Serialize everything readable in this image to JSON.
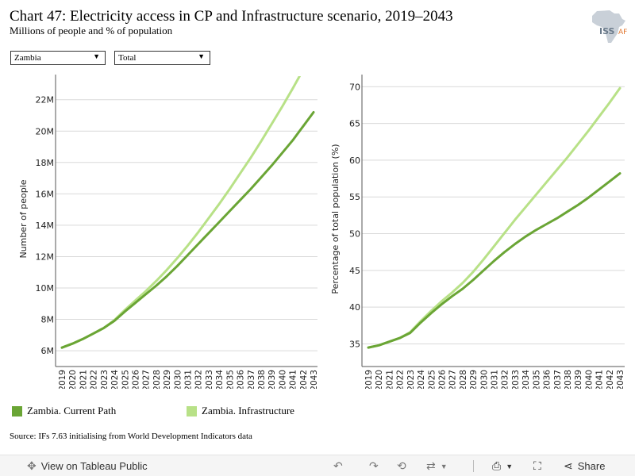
{
  "header": {
    "title": "Chart 47: Electricity access in CP and Infrastructure scenario, 2019–2043",
    "subtitle": "Millions of people and % of population",
    "logo_text": "ISS",
    "logo_suffix": "AF"
  },
  "filters": {
    "country": "Zambia",
    "segment": "Total"
  },
  "colors": {
    "current_path": "#6aa535",
    "infrastructure": "#b8e187",
    "grid": "#d9d9d9",
    "axis": "#555555"
  },
  "legend": {
    "items": [
      {
        "label": "Zambia. Current Path",
        "color": "#6aa535"
      },
      {
        "label": "Zambia. Infrastructure",
        "color": "#b8e187"
      }
    ]
  },
  "source": "Source: IFs 7.63 initialising from World Development Indicators data",
  "toolbar": {
    "view_label": "View on Tableau Public",
    "share_label": "Share"
  },
  "chart_data": [
    {
      "type": "line",
      "title": "",
      "ylabel": "Number of people",
      "xlabel": "",
      "x": [
        2019,
        2020,
        2021,
        2022,
        2023,
        2024,
        2025,
        2026,
        2027,
        2028,
        2029,
        2030,
        2031,
        2032,
        2033,
        2034,
        2035,
        2036,
        2037,
        2038,
        2039,
        2040,
        2041,
        2042,
        2043
      ],
      "ylim": [
        5.5,
        23.3
      ],
      "yticks": [
        6,
        8,
        10,
        12,
        14,
        16,
        18,
        20,
        22
      ],
      "ytick_labels": [
        "6M",
        "8M",
        "10M",
        "12M",
        "14M",
        "16M",
        "18M",
        "20M",
        "22M"
      ],
      "series": [
        {
          "name": "Zambia. Current Path",
          "values": [
            6.2,
            6.45,
            6.75,
            7.1,
            7.45,
            7.9,
            8.5,
            9.05,
            9.6,
            10.15,
            10.75,
            11.4,
            12.1,
            12.8,
            13.5,
            14.2,
            14.9,
            15.6,
            16.3,
            17.05,
            17.8,
            18.6,
            19.4,
            20.3,
            21.2
          ]
        },
        {
          "name": "Zambia. Infrastructure",
          "values": [
            6.2,
            6.45,
            6.75,
            7.1,
            7.45,
            7.95,
            8.6,
            9.2,
            9.8,
            10.45,
            11.15,
            11.9,
            12.7,
            13.55,
            14.45,
            15.35,
            16.3,
            17.3,
            18.3,
            19.35,
            20.45,
            21.55,
            22.7,
            23.9,
            25.1
          ]
        }
      ]
    },
    {
      "type": "line",
      "title": "",
      "ylabel": "Percentage of total population (%)",
      "xlabel": "",
      "x": [
        2019,
        2020,
        2021,
        2022,
        2023,
        2024,
        2025,
        2026,
        2027,
        2028,
        2029,
        2030,
        2031,
        2032,
        2033,
        2034,
        2035,
        2036,
        2037,
        2038,
        2039,
        2040,
        2041,
        2042,
        2043
      ],
      "ylim": [
        33,
        71
      ],
      "yticks": [
        35,
        40,
        45,
        50,
        55,
        60,
        65,
        70
      ],
      "ytick_labels": [
        "35",
        "40",
        "45",
        "50",
        "55",
        "60",
        "65",
        "70"
      ],
      "series": [
        {
          "name": "Zambia. Current Path",
          "values": [
            34.5,
            34.8,
            35.3,
            35.8,
            36.5,
            37.9,
            39.2,
            40.4,
            41.5,
            42.5,
            43.7,
            45.0,
            46.3,
            47.5,
            48.6,
            49.6,
            50.5,
            51.3,
            52.1,
            53.0,
            53.9,
            54.9,
            56.0,
            57.1,
            58.2
          ]
        },
        {
          "name": "Zambia. Infrastructure",
          "values": [
            34.5,
            34.8,
            35.3,
            35.8,
            36.6,
            38.1,
            39.5,
            40.8,
            42.0,
            43.3,
            44.8,
            46.5,
            48.3,
            50.1,
            51.9,
            53.6,
            55.3,
            57.0,
            58.7,
            60.4,
            62.2,
            64.0,
            65.9,
            67.8,
            69.8
          ]
        }
      ]
    }
  ]
}
